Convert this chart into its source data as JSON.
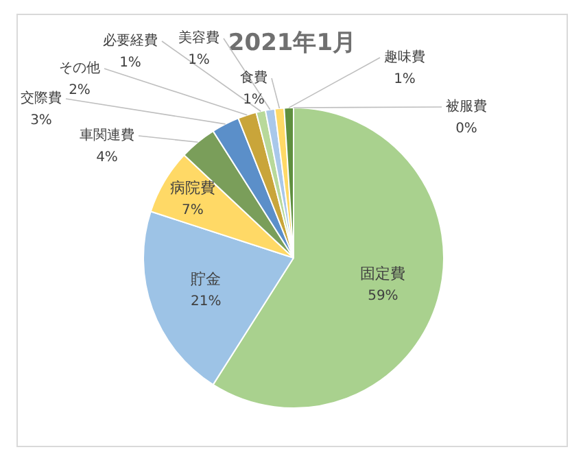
{
  "chart_data": {
    "type": "pie",
    "title": "2021年1月",
    "categories": [
      "固定費",
      "貯金",
      "病院費",
      "車関連費",
      "交際費",
      "その他",
      "必要経費",
      "美容費",
      "食費",
      "趣味費",
      "被服費"
    ],
    "values": [
      59,
      21,
      7,
      4,
      3,
      2,
      1,
      1,
      1,
      1,
      0
    ],
    "value_labels": [
      "59%",
      "21%",
      "7%",
      "4%",
      "3%",
      "2%",
      "1%",
      "1%",
      "1%",
      "1%",
      "0%"
    ],
    "colors": [
      "#a9d18e",
      "#9dc3e6",
      "#ffd966",
      "#7a9e5a",
      "#5b8fc9",
      "#c9a53a",
      "#b8d99a",
      "#a9c8ea",
      "#ffd966",
      "#5f8f3f",
      "#3a6fb0"
    ],
    "legend": false
  }
}
